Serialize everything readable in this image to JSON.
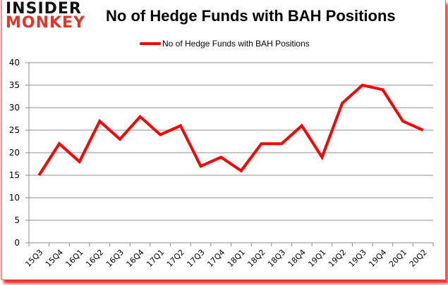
{
  "logo": {
    "line1": "INSIDER",
    "line2": "MONKEY"
  },
  "header": {
    "title": "No of Hedge Funds with BAH Positions"
  },
  "legend": {
    "label": "No of Hedge Funds with BAH Positions",
    "color": "#ff0000"
  },
  "chart_data": {
    "type": "line",
    "title": "No of Hedge Funds with BAH Positions",
    "xlabel": "",
    "ylabel": "",
    "ylim": [
      0,
      40
    ],
    "yticks": [
      0,
      5,
      10,
      15,
      20,
      25,
      30,
      35,
      40
    ],
    "grid": true,
    "legend_position": "top",
    "categories": [
      "15Q3",
      "15Q4",
      "16Q1",
      "16Q2",
      "16Q3",
      "16Q4",
      "17Q1",
      "17Q2",
      "17Q3",
      "17Q4",
      "18Q1",
      "18Q2",
      "18Q3",
      "18Q4",
      "19Q1",
      "19Q2",
      "19Q3",
      "19Q4",
      "20Q1",
      "20Q2"
    ],
    "series": [
      {
        "name": "No of Hedge Funds with BAH Positions",
        "color": "#ff0000",
        "values": [
          15,
          22,
          18,
          27,
          23,
          28,
          24,
          26,
          17,
          19,
          16,
          22,
          22,
          26,
          19,
          31,
          35,
          34,
          27,
          25
        ]
      }
    ]
  }
}
